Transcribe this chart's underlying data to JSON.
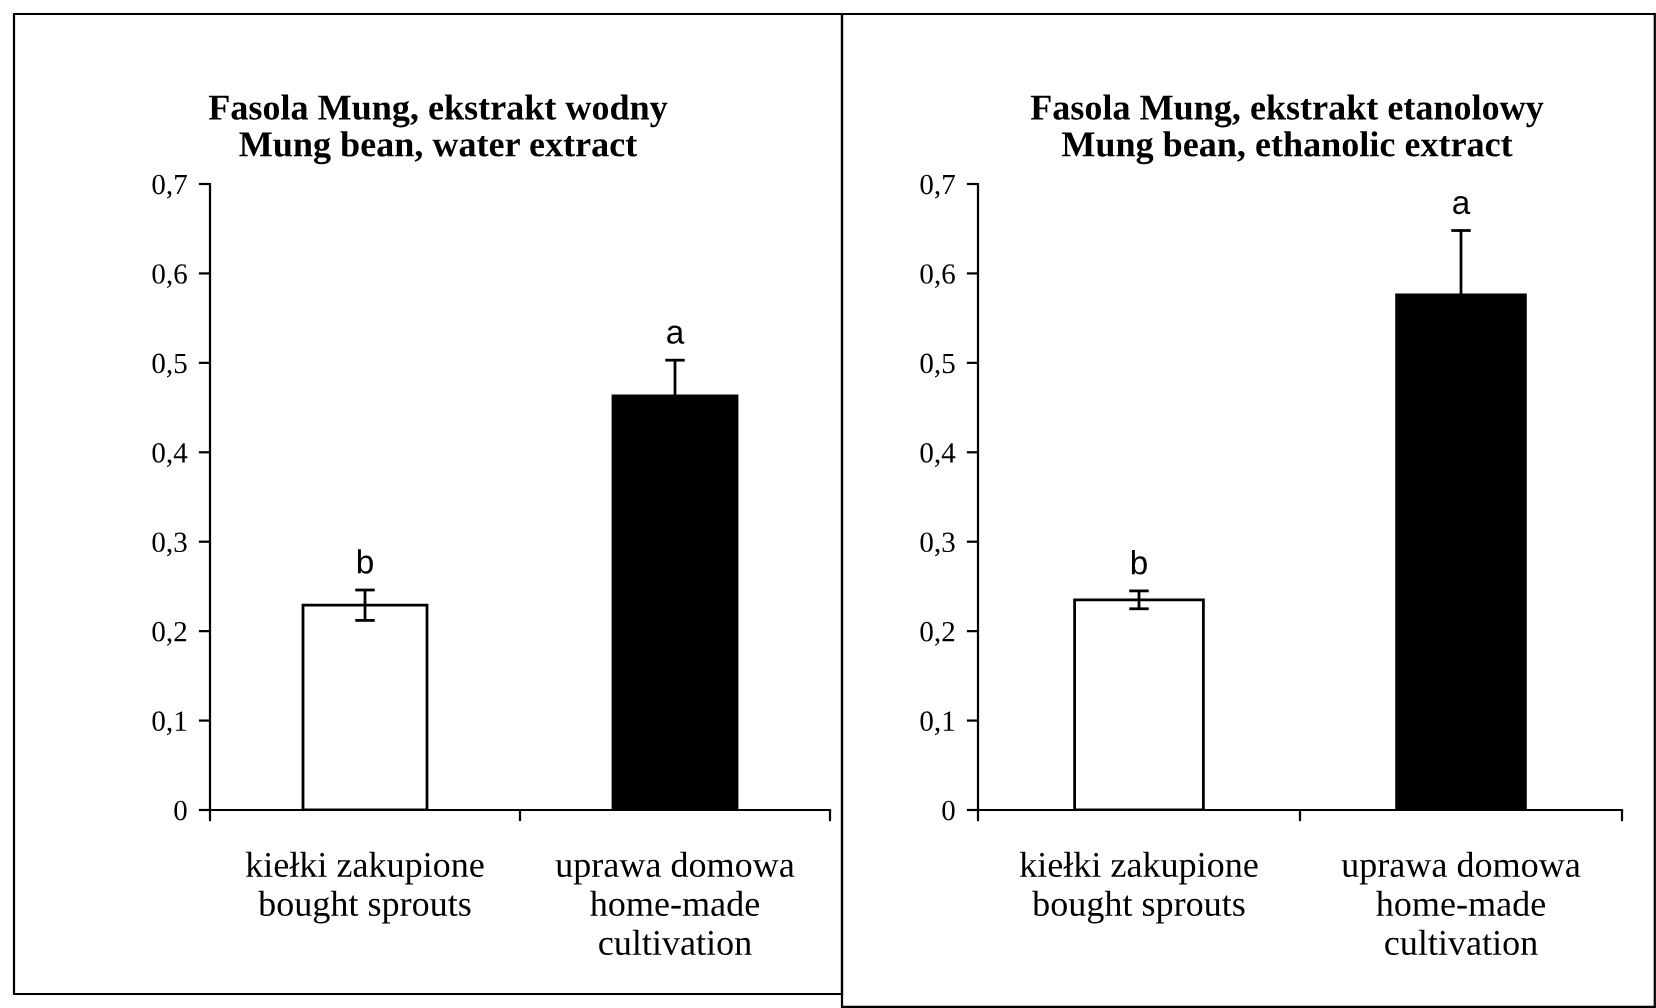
{
  "chart_data": [
    {
      "type": "bar",
      "title": "Fasola Mung, ekstrakt wodny\nMung bean, water extract",
      "categories": [
        "kiełki zakupione\nbought sprouts",
        "uprawa domowa\nhome-made\ncultivation"
      ],
      "values": [
        0.229,
        0.463
      ],
      "colors": [
        "#ffffff",
        "#000000"
      ],
      "errors": [
        0.017,
        0.04
      ],
      "ylim": [
        0,
        0.7
      ],
      "yticks": [
        0,
        {
          "value": 0.1,
          "label": "0,1"
        },
        {
          "value": 0.2,
          "label": "0,2"
        },
        {
          "value": 0.3,
          "label": "0,3"
        },
        {
          "value": 0.4,
          "label": "0,4"
        },
        {
          "value": 0.5,
          "label": "0,5"
        },
        {
          "value": 0.6,
          "label": "0,6"
        },
        {
          "value": 0.7,
          "label": "0,7"
        }
      ],
      "annotations": [
        "b",
        "a"
      ]
    },
    {
      "type": "bar",
      "title": "Fasola Mung, ekstrakt etanolowy\nMung bean, ethanolic extract",
      "categories": [
        "kiełki zakupione\nbought sprouts",
        "uprawa domowa\nhome-made\ncultivation"
      ],
      "values": [
        0.235,
        0.576
      ],
      "colors": [
        "#ffffff",
        "#000000"
      ],
      "errors": [
        0.01,
        0.072
      ],
      "ylim": [
        0,
        0.7
      ],
      "yticks": [
        0,
        {
          "value": 0.1,
          "label": "0,1"
        },
        {
          "value": 0.2,
          "label": "0,2"
        },
        {
          "value": 0.3,
          "label": "0,3"
        },
        {
          "value": 0.4,
          "label": "0,4"
        },
        {
          "value": 0.5,
          "label": "0,5"
        },
        {
          "value": 0.6,
          "label": "0,6"
        },
        {
          "value": 0.7,
          "label": "0,7"
        }
      ],
      "annotations": [
        "b",
        "a"
      ]
    }
  ]
}
